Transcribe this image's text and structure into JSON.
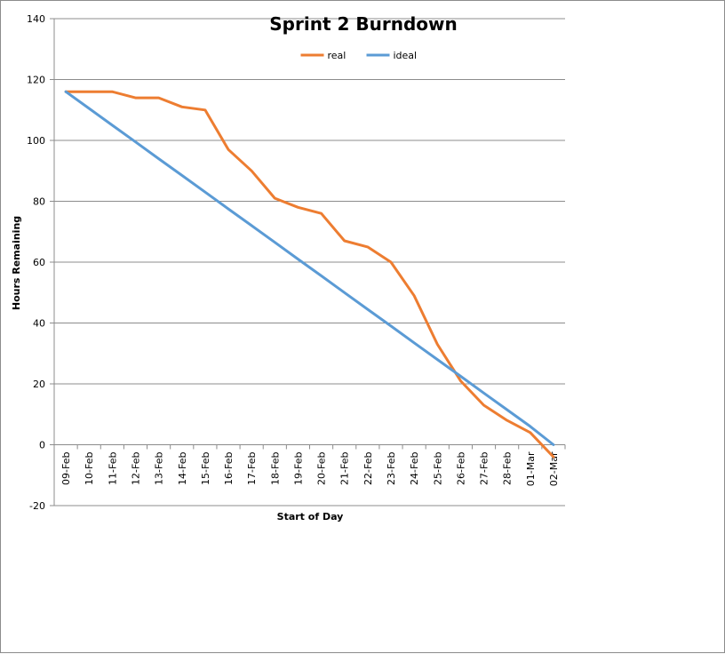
{
  "chart_data": {
    "type": "line",
    "title": "Sprint 2 Burndown",
    "xlabel": "Start of Day",
    "ylabel": "Hours Remaining",
    "categories": [
      "09-Feb",
      "10-Feb",
      "11-Feb",
      "12-Feb",
      "13-Feb",
      "14-Feb",
      "15-Feb",
      "16-Feb",
      "17-Feb",
      "18-Feb",
      "19-Feb",
      "20-Feb",
      "21-Feb",
      "22-Feb",
      "23-Feb",
      "24-Feb",
      "25-Feb",
      "26-Feb",
      "27-Feb",
      "28-Feb",
      "01-Mar",
      "02-Mar"
    ],
    "ylim": [
      -20,
      140
    ],
    "yticks": [
      -20,
      0,
      20,
      40,
      60,
      80,
      100,
      120,
      140
    ],
    "grid": true,
    "legend_position": "top",
    "series": [
      {
        "name": "real",
        "color": "#ED7D31",
        "values": [
          116,
          116,
          116,
          114,
          114,
          111,
          110,
          97,
          90,
          81,
          78,
          76,
          67,
          65,
          60,
          49,
          33,
          21,
          13,
          8,
          4,
          -4
        ]
      },
      {
        "name": "ideal",
        "color": "#5B9BD5",
        "values": [
          116,
          110.5,
          105,
          99.5,
          94,
          88.5,
          83,
          77.5,
          72,
          66.5,
          61,
          55.5,
          50,
          44.5,
          39,
          33.5,
          28,
          22.5,
          17,
          11.5,
          6,
          0
        ]
      }
    ]
  }
}
